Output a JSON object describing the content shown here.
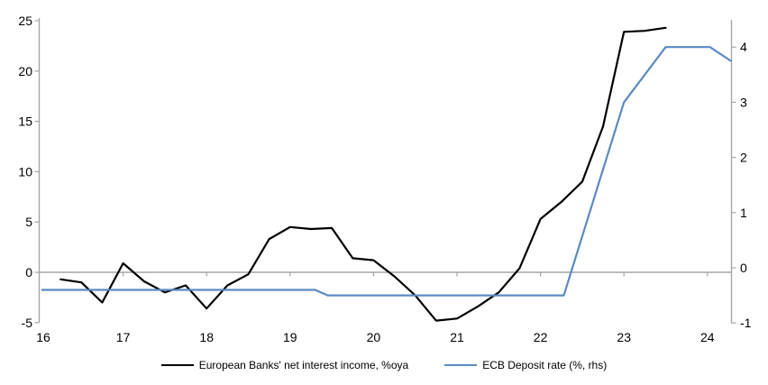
{
  "chart_data": {
    "type": "line",
    "title": "",
    "xlabel": "",
    "ylabel_left": "",
    "ylabel_right": "",
    "x_axis": {
      "ticks": [
        16,
        17,
        18,
        19,
        20,
        21,
        22,
        23,
        24
      ],
      "range": [
        16,
        24.3
      ]
    },
    "y_axis_left": {
      "ticks": [
        -5,
        0,
        5,
        10,
        15,
        20,
        25
      ],
      "range": [
        -5,
        25
      ]
    },
    "y_axis_right": {
      "ticks": [
        -1,
        0,
        1,
        2,
        3,
        4
      ],
      "range": [
        -1,
        4.6
      ]
    },
    "grid": "zero-line-only",
    "legend_position": "bottom-center",
    "series": [
      {
        "name": "European Banks' net interest income, %oya",
        "axis": "left",
        "color": "#000000",
        "x": [
          16.25,
          16.5,
          16.75,
          17.0,
          17.25,
          17.5,
          17.75,
          18.0,
          18.25,
          18.5,
          18.75,
          19.0,
          19.25,
          19.5,
          19.75,
          20.0,
          20.25,
          20.5,
          20.75,
          21.0,
          21.25,
          21.5,
          21.75,
          22.0,
          22.25,
          22.5,
          22.75,
          23.0,
          23.25,
          23.5
        ],
        "values": [
          -0.7,
          -1.0,
          -3.0,
          0.9,
          -0.9,
          -2.0,
          -1.3,
          -3.6,
          -1.3,
          -0.2,
          3.3,
          4.5,
          4.3,
          4.4,
          1.4,
          1.2,
          -0.4,
          -2.3,
          -4.8,
          -4.6,
          -3.4,
          -2.0,
          0.4,
          5.3,
          7.0,
          9.0,
          14.5,
          23.9,
          24.0,
          24.3
        ]
      },
      {
        "name": "ECB Deposit rate (%, rhs)",
        "axis": "right",
        "color": "#5b8ac2",
        "x": [
          16.03,
          19.3,
          19.45,
          22.28,
          23.0,
          23.5,
          24.03,
          24.28
        ],
        "values": [
          -0.4,
          -0.4,
          -0.5,
          -0.5,
          3.0,
          4.0,
          4.0,
          3.75
        ]
      }
    ]
  },
  "colors": {
    "axis_gray": "#a6a6a6",
    "background": "#ffffff",
    "text": "#000000"
  }
}
